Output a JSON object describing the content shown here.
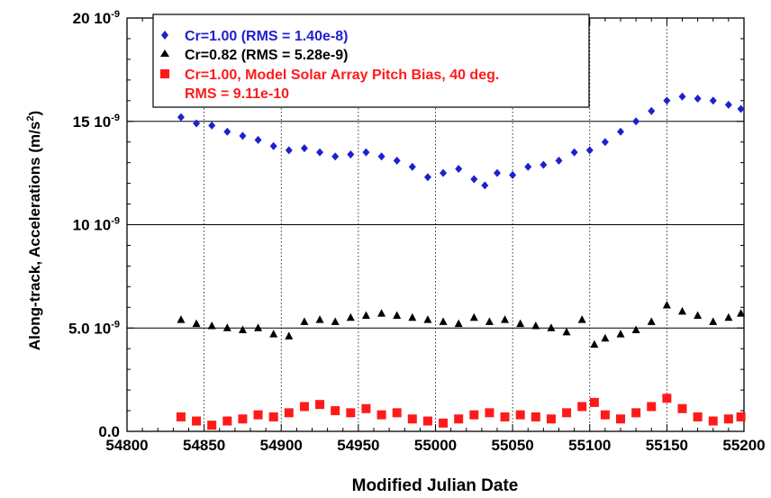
{
  "chart_data": {
    "type": "scatter",
    "xlabel": "Modified Julian Date",
    "ylabel_main": "Along-track, Accelerations (m/s",
    "ylabel_exp": "2",
    "ylabel_close": ")",
    "xlim": [
      54800,
      55200
    ],
    "ylim": [
      0,
      2e-08
    ],
    "x_ticks": [
      54800,
      54850,
      54900,
      54950,
      55000,
      55050,
      55100,
      55150,
      55200
    ],
    "x_tick_labels": [
      "54800",
      "54850",
      "54900",
      "54950",
      "55000",
      "55050",
      "55100",
      "55150",
      "55200"
    ],
    "y_ticks": [
      0,
      5e-09,
      1e-08,
      1.5e-08,
      2e-08
    ],
    "y_tick_labels": [
      "0.0",
      "5.0 10",
      "10 10",
      "15 10",
      "20 10"
    ],
    "y_tick_exponents": [
      "",
      "-9",
      "-9",
      "-9",
      "-9"
    ],
    "grid": {
      "horizontal": true,
      "vertical": "dotted"
    },
    "legend_position": "top-left",
    "series": [
      {
        "name": "Cr=1.00 (RMS = 1.40e-8)",
        "marker": "diamond",
        "color": "#1f1fd0",
        "points": [
          [
            54835,
            1.52e-08
          ],
          [
            54845,
            1.49e-08
          ],
          [
            54855,
            1.48e-08
          ],
          [
            54865,
            1.45e-08
          ],
          [
            54875,
            1.43e-08
          ],
          [
            54885,
            1.41e-08
          ],
          [
            54895,
            1.38e-08
          ],
          [
            54905,
            1.36e-08
          ],
          [
            54915,
            1.37e-08
          ],
          [
            54925,
            1.35e-08
          ],
          [
            54935,
            1.33e-08
          ],
          [
            54945,
            1.34e-08
          ],
          [
            54955,
            1.35e-08
          ],
          [
            54965,
            1.33e-08
          ],
          [
            54975,
            1.31e-08
          ],
          [
            54985,
            1.28e-08
          ],
          [
            54995,
            1.23e-08
          ],
          [
            55005,
            1.25e-08
          ],
          [
            55015,
            1.27e-08
          ],
          [
            55025,
            1.22e-08
          ],
          [
            55032,
            1.19e-08
          ],
          [
            55040,
            1.25e-08
          ],
          [
            55050,
            1.24e-08
          ],
          [
            55060,
            1.28e-08
          ],
          [
            55070,
            1.29e-08
          ],
          [
            55080,
            1.31e-08
          ],
          [
            55090,
            1.35e-08
          ],
          [
            55100,
            1.36e-08
          ],
          [
            55110,
            1.4e-08
          ],
          [
            55120,
            1.45e-08
          ],
          [
            55130,
            1.5e-08
          ],
          [
            55140,
            1.55e-08
          ],
          [
            55150,
            1.6e-08
          ],
          [
            55160,
            1.62e-08
          ],
          [
            55170,
            1.61e-08
          ],
          [
            55180,
            1.6e-08
          ],
          [
            55190,
            1.58e-08
          ],
          [
            55198,
            1.56e-08
          ]
        ]
      },
      {
        "name": "Cr=0.82 (RMS = 5.28e-9)",
        "marker": "triangle",
        "color": "#000000",
        "points": [
          [
            54835,
            5.4e-09
          ],
          [
            54845,
            5.2e-09
          ],
          [
            54855,
            5.1e-09
          ],
          [
            54865,
            5e-09
          ],
          [
            54875,
            4.9e-09
          ],
          [
            54885,
            5e-09
          ],
          [
            54895,
            4.7e-09
          ],
          [
            54905,
            4.6e-09
          ],
          [
            54915,
            5.3e-09
          ],
          [
            54925,
            5.4e-09
          ],
          [
            54935,
            5.3e-09
          ],
          [
            54945,
            5.5e-09
          ],
          [
            54955,
            5.6e-09
          ],
          [
            54965,
            5.7e-09
          ],
          [
            54975,
            5.6e-09
          ],
          [
            54985,
            5.5e-09
          ],
          [
            54995,
            5.4e-09
          ],
          [
            55005,
            5.3e-09
          ],
          [
            55015,
            5.2e-09
          ],
          [
            55025,
            5.5e-09
          ],
          [
            55035,
            5.3e-09
          ],
          [
            55045,
            5.4e-09
          ],
          [
            55055,
            5.2e-09
          ],
          [
            55065,
            5.1e-09
          ],
          [
            55075,
            5e-09
          ],
          [
            55085,
            4.8e-09
          ],
          [
            55095,
            5.4e-09
          ],
          [
            55103,
            4.2e-09
          ],
          [
            55110,
            4.5e-09
          ],
          [
            55120,
            4.7e-09
          ],
          [
            55130,
            4.9e-09
          ],
          [
            55140,
            5.3e-09
          ],
          [
            55150,
            6.1e-09
          ],
          [
            55160,
            5.8e-09
          ],
          [
            55170,
            5.6e-09
          ],
          [
            55180,
            5.3e-09
          ],
          [
            55190,
            5.5e-09
          ],
          [
            55198,
            5.7e-09
          ]
        ]
      },
      {
        "name": "Cr=1.00, Model Solar Array Pitch Bias, 40 deg.",
        "name_line2": "RMS = 9.11e-10",
        "marker": "square",
        "color": "#ff1a1a",
        "points": [
          [
            54835,
            7e-10
          ],
          [
            54845,
            5e-10
          ],
          [
            54855,
            3e-10
          ],
          [
            54865,
            5e-10
          ],
          [
            54875,
            6e-10
          ],
          [
            54885,
            8e-10
          ],
          [
            54895,
            7e-10
          ],
          [
            54905,
            9e-10
          ],
          [
            54915,
            1.2e-09
          ],
          [
            54925,
            1.3e-09
          ],
          [
            54935,
            1e-09
          ],
          [
            54945,
            9e-10
          ],
          [
            54955,
            1.1e-09
          ],
          [
            54965,
            8e-10
          ],
          [
            54975,
            9e-10
          ],
          [
            54985,
            6e-10
          ],
          [
            54995,
            5e-10
          ],
          [
            55005,
            4e-10
          ],
          [
            55015,
            6e-10
          ],
          [
            55025,
            8e-10
          ],
          [
            55035,
            9e-10
          ],
          [
            55045,
            7e-10
          ],
          [
            55055,
            8e-10
          ],
          [
            55065,
            7e-10
          ],
          [
            55075,
            6e-10
          ],
          [
            55085,
            9e-10
          ],
          [
            55095,
            1.2e-09
          ],
          [
            55103,
            1.4e-09
          ],
          [
            55110,
            8e-10
          ],
          [
            55120,
            6e-10
          ],
          [
            55130,
            9e-10
          ],
          [
            55140,
            1.2e-09
          ],
          [
            55150,
            1.6e-09
          ],
          [
            55160,
            1.1e-09
          ],
          [
            55170,
            7e-10
          ],
          [
            55180,
            5e-10
          ],
          [
            55190,
            6e-10
          ],
          [
            55198,
            7e-10
          ]
        ]
      }
    ]
  }
}
